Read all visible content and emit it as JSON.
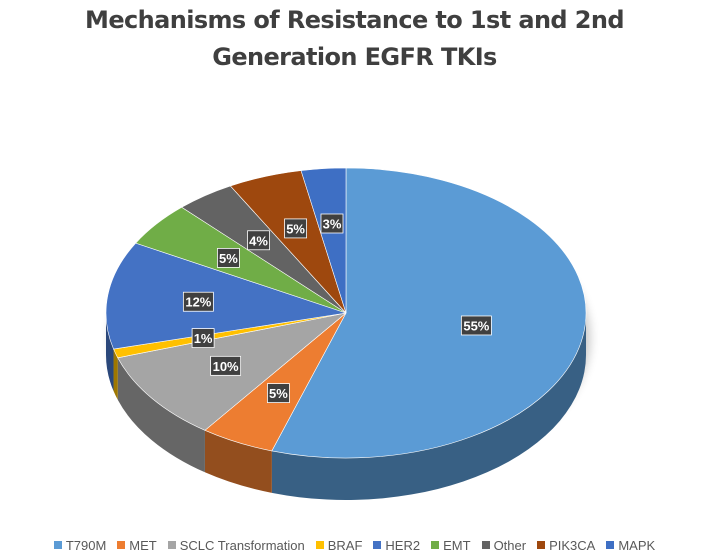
{
  "chart_data": {
    "type": "pie",
    "title": "Mechanisms of Resistance to 1st and 2nd Generation EGFR TKIs",
    "title_lines": [
      "Mechanisms of Resistance to 1st and 2nd",
      "Generation EGFR TKIs"
    ],
    "style": "3d",
    "legend_position": "bottom",
    "slices": [
      {
        "label": "T790M",
        "value": 55,
        "display": "55%",
        "color": "#5b9bd5"
      },
      {
        "label": "MET",
        "value": 5,
        "display": "5%",
        "color": "#ed7d31"
      },
      {
        "label": "SCLC Transformation",
        "value": 10,
        "display": "10%",
        "color": "#a5a5a5"
      },
      {
        "label": "BRAF",
        "value": 1,
        "display": "1%",
        "color": "#ffc000"
      },
      {
        "label": "HER2",
        "value": 12,
        "display": "12%",
        "color": "#4472c4"
      },
      {
        "label": "EMT",
        "value": 5,
        "display": "5%",
        "color": "#70ad47"
      },
      {
        "label": "Other",
        "value": 4,
        "display": "4%",
        "color": "#636363"
      },
      {
        "label": "PIK3CA",
        "value": 5,
        "display": "5%",
        "color": "#9e480e"
      },
      {
        "label": "MAPK",
        "value": 3,
        "display": "3%",
        "color": "#3e6fc4"
      }
    ]
  }
}
